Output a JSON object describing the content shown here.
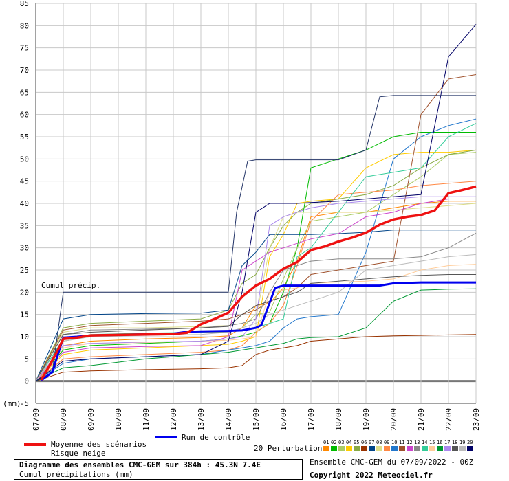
{
  "chart_data": {
    "type": "line",
    "ylabel": "(mm)",
    "ylim": [
      -5,
      85
    ],
    "yticks": [
      -5,
      0,
      5,
      10,
      15,
      20,
      25,
      30,
      35,
      40,
      45,
      50,
      55,
      60,
      65,
      70,
      75,
      80,
      85
    ],
    "xlim": [
      0,
      16
    ],
    "x_tick_labels": [
      "07/09",
      "08/09",
      "09/09",
      "10/09",
      "11/09",
      "12/09",
      "13/09",
      "14/09",
      "15/09",
      "16/09",
      "17/09",
      "18/09",
      "19/09",
      "20/09",
      "21/09",
      "22/09",
      "23/09"
    ],
    "annotation": "Cumul précip.",
    "grid": true,
    "mean": {
      "name": "Moyenne des scénarios",
      "color": "#ee1111",
      "x": [
        0.2,
        0.5,
        0.8,
        1.0,
        1.5,
        2.0,
        3.0,
        4.0,
        5.0,
        5.5,
        6.0,
        6.5,
        7.0,
        7.5,
        8.0,
        8.5,
        9.0,
        9.5,
        10.0,
        10.5,
        11.0,
        11.5,
        12.0,
        12.5,
        13.0,
        13.5,
        14.0,
        14.5,
        15.0,
        15.5,
        16.0
      ],
      "values": [
        0.3,
        3.5,
        7.0,
        9.5,
        9.8,
        10.3,
        10.4,
        10.5,
        10.6,
        10.9,
        12.8,
        14.0,
        15.4,
        19.0,
        21.5,
        23.0,
        25.3,
        26.8,
        29.5,
        30.3,
        31.4,
        32.3,
        33.4,
        35.2,
        36.4,
        37.0,
        37.4,
        38.4,
        42.3,
        43.0,
        43.8
      ]
    },
    "control": {
      "name": "Run de contrôle",
      "color": "#0000ee",
      "x": [
        0.2,
        0.6,
        1.0,
        1.5,
        2.0,
        3.0,
        5.0,
        5.5,
        6.0,
        7.0,
        7.5,
        8.0,
        8.2,
        8.7,
        9.0,
        10.0,
        11.0,
        12.0,
        12.5,
        13.0,
        14.0,
        15.0,
        16.0
      ],
      "values": [
        0.2,
        2.0,
        9.8,
        10.0,
        10.3,
        10.4,
        10.7,
        11.1,
        11.2,
        11.3,
        11.4,
        12.0,
        12.6,
        21.0,
        21.5,
        21.5,
        21.5,
        21.5,
        21.5,
        22.0,
        22.2,
        22.2,
        22.2
      ]
    },
    "perturbations_label": "20 Perturbations",
    "perturbation_numbers": [
      "01",
      "02",
      "03",
      "04",
      "05",
      "06",
      "07",
      "08",
      "09",
      "10",
      "11",
      "12",
      "13",
      "14",
      "15",
      "16",
      "17",
      "18",
      "19",
      "20"
    ],
    "perturbation_colors": [
      "#ff8800",
      "#00bb00",
      "#aacc66",
      "#ffcc00",
      "#88aa44",
      "#993300",
      "#004488",
      "#dddd88",
      "#ff8844",
      "#2277cc",
      "#a0522d",
      "#cc44cc",
      "#888888",
      "#33cc99",
      "#ffcc99",
      "#009933",
      "#aa88ee",
      "#555555",
      "#bbbbbb",
      "#000066"
    ],
    "perturbations": [
      {
        "x": [
          0,
          1,
          2,
          4,
          6,
          7,
          7.5,
          8,
          8.5,
          9,
          9.5,
          10,
          11,
          12,
          13,
          14,
          15,
          16
        ],
        "values": [
          0,
          8,
          9,
          9.5,
          9.8,
          10.2,
          12,
          17,
          17.5,
          21,
          27,
          37,
          38,
          38,
          39,
          40,
          40.5,
          40.5
        ]
      },
      {
        "x": [
          0,
          1,
          2,
          4,
          6,
          7,
          7.5,
          8,
          8.5,
          9,
          9.5,
          10,
          11,
          12,
          13,
          14,
          15,
          16
        ],
        "values": [
          0,
          7,
          8,
          8.5,
          9,
          9.5,
          10.2,
          11,
          13,
          20,
          30,
          48,
          50,
          52,
          55,
          56,
          56,
          56
        ]
      },
      {
        "x": [
          0,
          1,
          2,
          4,
          6,
          7,
          7.5,
          8,
          8.5,
          9,
          9.5,
          10,
          11,
          12,
          13,
          14,
          15,
          16
        ],
        "values": [
          0,
          9,
          10,
          10.5,
          11,
          11,
          12,
          15,
          15.5,
          23,
          30,
          36,
          37,
          38,
          42,
          46,
          51,
          51.5
        ]
      },
      {
        "x": [
          0,
          1,
          2,
          4,
          6,
          7,
          7.5,
          8,
          8.5,
          9,
          9.5,
          10,
          11,
          12,
          13,
          14,
          15,
          16
        ],
        "values": [
          0,
          6,
          7,
          7.5,
          8,
          8.3,
          9,
          10,
          28,
          33,
          40,
          40.5,
          41,
          48,
          51,
          51.5,
          51.5,
          52
        ]
      },
      {
        "x": [
          0,
          1,
          2,
          4,
          6,
          7,
          7.5,
          8,
          8.5,
          9,
          9.5,
          10,
          11,
          12,
          13,
          14,
          15,
          16
        ],
        "values": [
          0,
          12,
          13,
          13.5,
          14,
          16,
          22,
          24,
          30,
          35,
          38,
          40,
          41,
          42,
          44,
          48,
          51,
          52
        ]
      },
      {
        "x": [
          0,
          1,
          2,
          4,
          6,
          7,
          7.5,
          8,
          8.5,
          9,
          9.5,
          10,
          11,
          12,
          13,
          14,
          15,
          16
        ],
        "values": [
          0,
          2,
          2.3,
          2.6,
          2.8,
          3,
          3.5,
          6,
          7,
          7.5,
          8,
          9,
          9.5,
          10,
          10.2,
          10.3,
          10.4,
          10.5
        ]
      },
      {
        "x": [
          0,
          1,
          2,
          4,
          6,
          7,
          7.5,
          8,
          8.5,
          9,
          9.5,
          10,
          11,
          12,
          13,
          14,
          15,
          16
        ],
        "values": [
          0,
          14,
          15,
          15.2,
          15.3,
          16,
          26,
          29,
          33,
          33,
          33,
          33,
          33.2,
          33.5,
          34,
          34,
          34,
          34
        ]
      },
      {
        "x": [
          0,
          1,
          2,
          4,
          6,
          7,
          7.5,
          8,
          8.5,
          9,
          9.5,
          10,
          11,
          12,
          13,
          14,
          15,
          16
        ],
        "values": [
          0,
          11,
          12,
          12,
          12.3,
          12.5,
          13,
          14,
          30,
          37,
          38,
          38,
          38,
          38,
          38.5,
          39,
          39.5,
          40
        ]
      },
      {
        "x": [
          0,
          1,
          2,
          4,
          6,
          7,
          7.5,
          8,
          8.5,
          9,
          9.5,
          10,
          11,
          12,
          13,
          14,
          15,
          16
        ],
        "values": [
          0,
          5,
          5.5,
          6,
          6.5,
          7,
          8,
          11,
          13,
          17,
          26,
          36,
          42,
          42.5,
          43,
          44,
          44.5,
          45
        ]
      },
      {
        "x": [
          0,
          1,
          2,
          4,
          6,
          7,
          7.5,
          8,
          8.5,
          9,
          9.5,
          10,
          11,
          12,
          13,
          14,
          15,
          16
        ],
        "values": [
          0,
          4,
          5,
          5.5,
          6,
          7,
          7.5,
          8,
          9,
          12,
          14,
          14.5,
          15,
          29,
          50,
          55,
          57.5,
          59
        ]
      },
      {
        "x": [
          0,
          1,
          2,
          4,
          6,
          7,
          7.5,
          8,
          8.5,
          9,
          9.5,
          10,
          11,
          12,
          13,
          14,
          15,
          16
        ],
        "values": [
          0,
          11.5,
          12.5,
          13,
          13.5,
          14,
          15,
          16,
          18,
          19,
          21,
          24,
          25,
          26,
          27,
          60,
          68,
          69
        ]
      },
      {
        "x": [
          0,
          1,
          2,
          4,
          6,
          7,
          7.5,
          8,
          8.5,
          9,
          9.5,
          10,
          11,
          12,
          13,
          14,
          15,
          16
        ],
        "values": [
          0,
          6.5,
          7.5,
          7.8,
          8,
          10,
          25,
          27,
          29,
          30,
          31,
          32,
          33.2,
          37,
          38,
          40,
          41,
          41
        ]
      },
      {
        "x": [
          0,
          1,
          2,
          4,
          6,
          7,
          7.5,
          8,
          8.5,
          9,
          9.5,
          10,
          11,
          12,
          13,
          14,
          15,
          16
        ],
        "values": [
          0,
          10.5,
          11.5,
          11.7,
          12,
          12.5,
          13,
          14,
          20,
          25,
          26,
          27,
          27.5,
          27.5,
          27.5,
          28,
          30,
          33.3
        ]
      },
      {
        "x": [
          0,
          1,
          2,
          4,
          6,
          7,
          7.5,
          8,
          8.5,
          9,
          9.5,
          10,
          11,
          12,
          13,
          14,
          15,
          16
        ],
        "values": [
          0,
          9.5,
          10.5,
          10.8,
          11,
          11.3,
          11.5,
          12,
          13,
          14,
          28,
          30,
          38,
          46,
          47,
          48,
          55,
          58
        ]
      },
      {
        "x": [
          0,
          1,
          2,
          4,
          6,
          7,
          7.5,
          8,
          8.5,
          9,
          9.5,
          10,
          11,
          12,
          13,
          14,
          15,
          16
        ],
        "values": [
          0,
          7.5,
          8.5,
          8.7,
          9,
          9.2,
          9.5,
          10,
          20,
          20.5,
          21,
          22,
          22.3,
          22.5,
          23,
          25,
          26,
          26.3
        ]
      },
      {
        "x": [
          0,
          1,
          2,
          4,
          6,
          7,
          7.5,
          8,
          8.5,
          9,
          9.5,
          10,
          11,
          12,
          13,
          14,
          15,
          16
        ],
        "values": [
          0,
          3,
          3.5,
          5,
          6,
          6.5,
          7,
          7.5,
          8,
          8.5,
          9.5,
          9.8,
          10,
          12,
          18,
          20.5,
          20.7,
          20.8
        ]
      },
      {
        "x": [
          0,
          1,
          2,
          4,
          6,
          7,
          7.5,
          8,
          8.5,
          9,
          9.5,
          10,
          11,
          12,
          13,
          14,
          15,
          16
        ],
        "values": [
          0,
          8,
          8.5,
          8.8,
          9,
          9.5,
          10,
          14,
          35,
          37,
          38,
          39,
          40,
          40.5,
          41,
          41.5,
          41.5,
          41.5
        ]
      },
      {
        "x": [
          0,
          1,
          2,
          4,
          6,
          7,
          7.5,
          8,
          8.5,
          9,
          9.5,
          10,
          11,
          12,
          13,
          14,
          15,
          16
        ],
        "values": [
          0,
          10.5,
          11,
          11.5,
          12,
          12.3,
          15,
          17,
          18,
          19,
          20,
          22,
          22.5,
          23,
          23.5,
          23.8,
          24,
          24
        ]
      },
      {
        "x": [
          0,
          1,
          2,
          4,
          6,
          7,
          7.5,
          8,
          8.5,
          9,
          9.5,
          10,
          11,
          12,
          13,
          14,
          15,
          16
        ],
        "values": [
          0,
          9,
          10,
          10.3,
          10.5,
          11,
          12,
          13,
          15,
          16,
          17,
          18,
          20,
          25,
          26,
          27,
          28,
          28.5
        ]
      },
      {
        "x": [
          0,
          1,
          2,
          4,
          6,
          7,
          7.5,
          8,
          8.5,
          9,
          9.5,
          10,
          11,
          12,
          13,
          14,
          15,
          16
        ],
        "values": [
          0,
          4.5,
          5,
          5.5,
          6,
          9,
          20,
          38,
          40,
          40,
          40,
          40.2,
          40.5,
          41,
          41.5,
          42,
          73,
          80.3
        ]
      }
    ],
    "extra_run": {
      "color": "#223366",
      "x": [
        0,
        0.6,
        1,
        2,
        4,
        5,
        5.5,
        6,
        6.5,
        7,
        7.3,
        7.7,
        8,
        9,
        10,
        11,
        12,
        12.5,
        13,
        14,
        15,
        16
      ],
      "values": [
        0,
        2,
        20,
        20,
        20,
        20,
        20,
        20,
        20,
        20,
        38,
        49.5,
        49.8,
        49.8,
        49.8,
        49.8,
        52,
        64,
        64.3,
        64.3,
        64.3,
        64.3
      ]
    }
  },
  "legend": {
    "mean_label": "Moyenne des scénarios",
    "snow_label": "Risque neige",
    "control_label": "Run de contrôle",
    "perturbations_label": "20 Perturbations"
  },
  "footer": {
    "title": "Diagramme des ensembles CMC-GEM sur 384h : 45.3N 7.4E",
    "subtitle": "Cumul précipitations (mm)",
    "run_info": "Ensemble CMC-GEM du 07/09/2022 - 00Z",
    "copyright": "Copyright 2022 Meteociel.fr"
  }
}
